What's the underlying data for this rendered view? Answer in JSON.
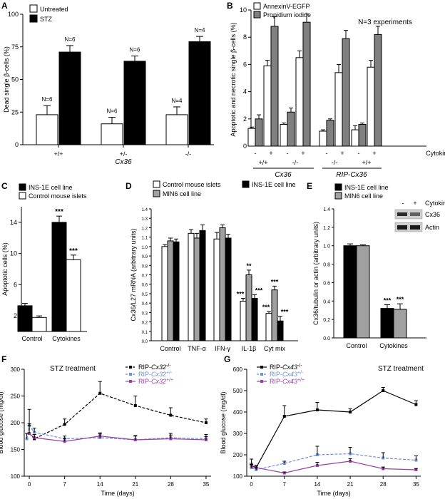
{
  "chart_data": [
    {
      "panel": "A",
      "type": "bar",
      "ylabel": "Dead single β-cells (%)",
      "ylim": [
        0,
        100
      ],
      "yticks": [
        0,
        25,
        50,
        75,
        100
      ],
      "legend": [
        "Untreated",
        "STZ"
      ],
      "legend_position": "top-left",
      "colors": {
        "Untreated": "#ffffff",
        "STZ": "#000000"
      },
      "categories": [
        "+/+",
        "+/-",
        "-/-"
      ],
      "xlabel": "Cx36",
      "series": [
        {
          "name": "Untreated",
          "values": [
            23,
            16,
            23
          ],
          "errors": [
            7,
            5,
            6
          ]
        },
        {
          "name": "STZ",
          "values": [
            71,
            64,
            79
          ],
          "errors": [
            5,
            4,
            4
          ]
        }
      ],
      "n_labels": [
        [
          "N=6",
          "N=6"
        ],
        [
          "N=6",
          "N=6"
        ],
        [
          "N=4",
          "N=4"
        ]
      ]
    },
    {
      "panel": "B",
      "type": "bar",
      "ylabel": "Apoptotic and necrotic single β-cells (%)",
      "ylim": [
        0,
        10
      ],
      "yticks": [
        0,
        2,
        4,
        6,
        8,
        10
      ],
      "legend": [
        "AnnexinV-EGFP",
        "Propidium iodide"
      ],
      "legend_position": "top-left",
      "colors": {
        "AnnexinV-EGFP": "#ffffff",
        "Propidium iodide": "#808080"
      },
      "annotation": "N=3 experiments",
      "cytokines_label": "Cytokines",
      "groups": [
        {
          "genotype": "+/+",
          "set": "Cx36",
          "cytokines": [
            "-",
            "+"
          ],
          "annexin": [
            1.3,
            5.9
          ],
          "annexin_err": [
            0.1,
            0.4
          ],
          "pi": [
            2.0,
            8.8
          ],
          "pi_err": [
            0.3,
            0.7
          ]
        },
        {
          "genotype": "-/-",
          "set": "Cx36",
          "cytokines": [
            "-",
            "+"
          ],
          "annexin": [
            1.6,
            6.5
          ],
          "annexin_err": [
            0.1,
            0.5
          ],
          "pi": [
            2.5,
            9.1
          ],
          "pi_err": [
            0.3,
            0.6
          ]
        },
        {
          "genotype": "-/-",
          "set": "RIP-Cx36",
          "cytokines": [
            "-",
            "+"
          ],
          "annexin": [
            1.1,
            5.4
          ],
          "annexin_err": [
            0.1,
            0.6
          ],
          "pi": [
            1.9,
            7.9
          ],
          "pi_err": [
            0.1,
            0.6
          ]
        },
        {
          "genotype": "+/+",
          "set": "RIP-Cx36",
          "cytokines": [
            "-",
            "+"
          ],
          "annexin": [
            1.2,
            5.8
          ],
          "annexin_err": [
            0.3,
            0.5
          ],
          "pi": [
            1.6,
            8.2
          ],
          "pi_err": [
            0.1,
            0.6
          ]
        }
      ],
      "set_labels": [
        "Cx36",
        "RIP-Cx36"
      ]
    },
    {
      "panel": "C",
      "type": "bar",
      "ylabel": "Apoptotic cells (%)",
      "ylim": [
        0,
        16
      ],
      "yticks": [
        2,
        6,
        10,
        14
      ],
      "legend": [
        "INS-1E cell line",
        "Control mouse islets"
      ],
      "legend_position": "top-left",
      "colors": {
        "INS-1E cell line": "#000000",
        "Control mouse islets": "#ffffff"
      },
      "categories": [
        "Control",
        "Cytokines"
      ],
      "series": [
        {
          "name": "INS-1E cell line",
          "values": [
            3.3,
            14.0
          ],
          "errors": [
            0.3,
            0.8
          ],
          "stars": [
            "",
            "***"
          ]
        },
        {
          "name": "Control mouse islets",
          "values": [
            1.8,
            9.2
          ],
          "errors": [
            0.2,
            0.6
          ],
          "stars": [
            "",
            "***"
          ]
        }
      ]
    },
    {
      "panel": "D",
      "type": "bar",
      "ylabel": "Cx36/L27 mRNA (arbitrary units)",
      "ylim": [
        0,
        1.4
      ],
      "yticks": [
        0.0,
        0.1,
        0.2,
        0.3,
        0.4,
        0.5,
        0.6,
        0.7,
        0.8,
        0.9,
        1.0,
        1.1,
        1.2,
        1.3,
        1.4
      ],
      "ytick_labels": [
        "0.0",
        "0.1",
        "0.2",
        "0.3",
        "0.4",
        "0.5",
        "0.6",
        "0.7",
        "0.8",
        "0.9",
        "1.0",
        "1.1",
        "1.2",
        "1.3",
        "1.4"
      ],
      "legend": [
        "Control mouse islets",
        "INS-1E cell line",
        "MIN6 cell line"
      ],
      "legend_position": "top",
      "colors": {
        "Control mouse islets": "#ffffff",
        "INS-1E cell line": "#000000",
        "MIN6 cell line": "#a0a0a0"
      },
      "categories": [
        "Control",
        "TNF-α",
        "IFN-γ",
        "IL-1β",
        "Cyt mix"
      ],
      "series": [
        {
          "name": "Control mouse islets",
          "values": [
            1.0,
            1.14,
            1.08,
            0.42,
            0.29
          ],
          "errors": [
            0.02,
            0.04,
            0.07,
            0.03,
            0.02
          ],
          "stars": [
            "",
            "",
            "",
            "***",
            "***"
          ]
        },
        {
          "name": "MIN6 cell line",
          "values": [
            1.06,
            1.09,
            1.2,
            0.7,
            0.54
          ],
          "errors": [
            0.03,
            0.05,
            0.03,
            0.05,
            0.04
          ],
          "stars": [
            "",
            "",
            "",
            "**",
            "***"
          ]
        },
        {
          "name": "INS-1E cell line",
          "values": [
            1.05,
            1.17,
            1.09,
            0.45,
            0.21
          ],
          "errors": [
            0.03,
            0.06,
            0.04,
            0.04,
            0.05
          ],
          "stars": [
            "",
            "",
            "",
            "***",
            "***"
          ]
        }
      ]
    },
    {
      "panel": "E",
      "type": "bar",
      "ylabel": "Cx36/tubulin or actin (arbitrary units)",
      "ylim": [
        0,
        1.4
      ],
      "yticks": [
        0.0,
        0.2,
        0.4,
        0.6,
        0.8,
        1.0,
        1.2,
        1.4
      ],
      "ytick_labels": [
        "0.0",
        "0.2",
        "0.4",
        "0.6",
        "0.8",
        "1.0",
        "1.2",
        "1.4"
      ],
      "legend": [
        "INS-1E cell line",
        "MIN6 cell line"
      ],
      "legend_position": "top-left",
      "colors": {
        "INS-1E cell line": "#000000",
        "MIN6 cell line": "#a0a0a0"
      },
      "categories": [
        "Control",
        "Cytokines"
      ],
      "series": [
        {
          "name": "INS-1E cell line",
          "values": [
            1.0,
            0.32
          ],
          "errors": [
            0.02,
            0.04
          ],
          "stars": [
            "",
            "***"
          ]
        },
        {
          "name": "MIN6 cell line",
          "values": [
            1.0,
            0.31
          ],
          "errors": [
            0.01,
            0.06
          ],
          "stars": [
            "",
            "***"
          ]
        }
      ],
      "blot": {
        "cytokines_label": "Cytokines",
        "lanes": [
          "-",
          "+"
        ],
        "bands": [
          "Cx36",
          "Actin"
        ]
      }
    },
    {
      "panel": "F",
      "type": "line",
      "title": "STZ treatment",
      "xlabel": "Time (days)",
      "ylabel": "Blood glucose (mg/dl)",
      "xlim": [
        -1,
        36
      ],
      "ylim": [
        100,
        300
      ],
      "xticks": [
        0,
        7,
        14,
        21,
        28,
        35
      ],
      "yticks": [
        100,
        150,
        200,
        250,
        300
      ],
      "legend_position": "top-right",
      "series": [
        {
          "name": "RIP-Cx32",
          "sup": "-/-",
          "color": "#000000",
          "dashed": true,
          "x": [
            0,
            1,
            7,
            14,
            21,
            28,
            35
          ],
          "y": [
            180,
            170,
            197,
            255,
            232,
            214,
            200
          ],
          "err": [
            18,
            8,
            10,
            22,
            18,
            14,
            7
          ]
        },
        {
          "name": "RIP-Cx32",
          "sup": "+/-",
          "color": "#6f8fd6",
          "dashed": true,
          "x": [
            -0.5,
            0,
            1,
            7,
            14,
            21,
            28,
            35
          ],
          "y": [
            170,
            195,
            182,
            170,
            172,
            168,
            172,
            170
          ],
          "err": [
            10,
            30,
            8,
            5,
            7,
            8,
            8,
            8
          ]
        },
        {
          "name": "RIP-Cx32",
          "sup": "+/+",
          "color": "#9a3ea8",
          "dashed": false,
          "x": [
            0,
            1,
            7,
            14,
            21,
            28,
            35
          ],
          "y": [
            180,
            172,
            165,
            175,
            168,
            170,
            168
          ],
          "err": [
            15,
            6,
            5,
            6,
            7,
            7,
            6
          ]
        }
      ]
    },
    {
      "panel": "G",
      "type": "line",
      "title": "STZ treatment",
      "xlabel": "Time (days)",
      "ylabel": "Blood glucose (mg/dl)",
      "xlim": [
        -1,
        36
      ],
      "ylim": [
        100,
        600
      ],
      "xticks": [
        0,
        7,
        14,
        21,
        28,
        35
      ],
      "yticks": [
        100,
        200,
        300,
        400,
        500,
        600
      ],
      "legend_position": "top-left",
      "series": [
        {
          "name": "RIP-Cx43",
          "sup": "-/-",
          "color": "#000000",
          "dashed": false,
          "x": [
            0,
            1,
            7,
            14,
            21,
            28,
            35
          ],
          "y": [
            150,
            140,
            380,
            410,
            400,
            500,
            435
          ],
          "err": [
            30,
            10,
            50,
            35,
            15,
            15,
            18
          ]
        },
        {
          "name": "RIP-Cx43",
          "sup": "+/-",
          "color": "#6f8fd6",
          "dashed": true,
          "x": [
            0,
            1,
            7,
            14,
            21,
            28,
            35
          ],
          "y": [
            140,
            130,
            160,
            200,
            205,
            185,
            175
          ],
          "err": [
            15,
            10,
            10,
            40,
            30,
            25,
            20
          ]
        },
        {
          "name": "RIP-Cx43",
          "sup": "+/+",
          "color": "#9a3ea8",
          "dashed": false,
          "x": [
            0,
            1,
            7,
            14,
            21,
            28,
            35
          ],
          "y": [
            145,
            140,
            115,
            150,
            170,
            135,
            130
          ],
          "err": [
            15,
            8,
            5,
            15,
            12,
            8,
            6
          ]
        }
      ]
    }
  ],
  "panel_letters": [
    "A",
    "B",
    "C",
    "D",
    "E",
    "F",
    "G"
  ]
}
